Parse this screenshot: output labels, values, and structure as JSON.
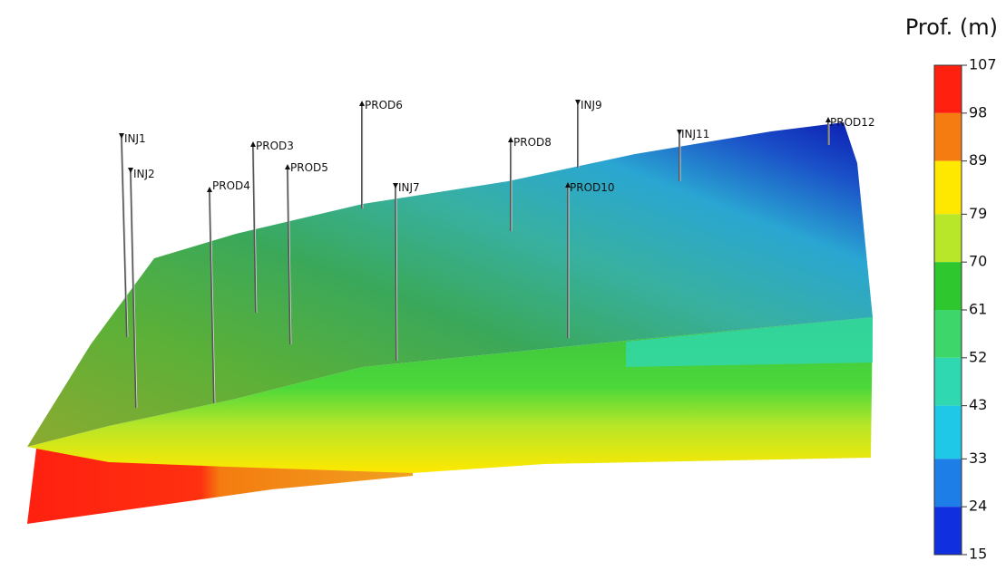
{
  "legend": {
    "title": "Prof. (m)",
    "ticks": [
      107,
      98,
      89,
      79,
      70,
      61,
      52,
      43,
      33,
      24,
      15
    ],
    "colors": [
      "#ff2010",
      "#f47c10",
      "#ffe800",
      "#b8e628",
      "#2ec72e",
      "#3cd66a",
      "#2fd8b0",
      "#1ec8e6",
      "#1e7ee8",
      "#1030e0",
      "#0010c0"
    ]
  },
  "wells": [
    "INJ1",
    "INJ2",
    "PROD4",
    "PROD3",
    "PROD5",
    "PROD6",
    "INJ7",
    "PROD8",
    "PROD10",
    "INJ9",
    "INJ11",
    "PROD12"
  ]
}
